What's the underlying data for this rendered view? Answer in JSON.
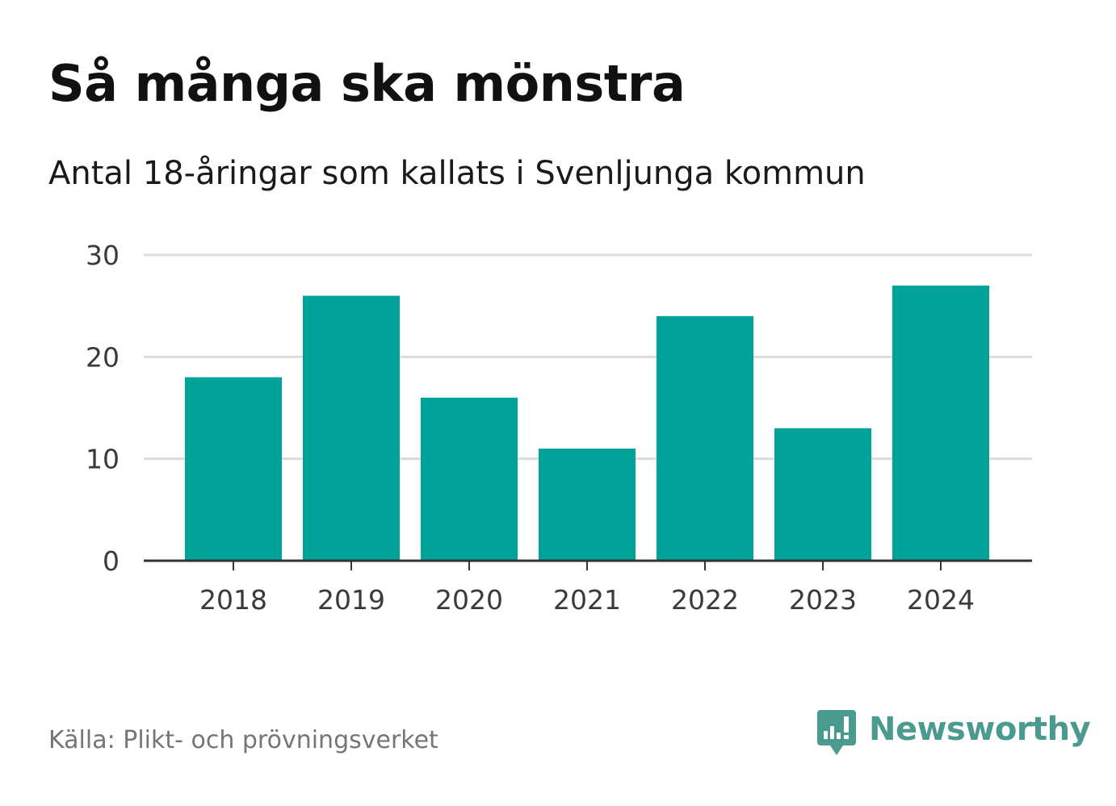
{
  "header": {
    "title": "Så många ska mönstra",
    "subtitle": "Antal 18-åringar som kallats i Svenljunga kommun"
  },
  "footer": {
    "source": "Källa: Plikt- och prövningsverket",
    "brand": "Newsworthy"
  },
  "colors": {
    "bar": "#00a39a",
    "grid": "#dcdcdc",
    "axis": "#333333",
    "brand": "#4b9a8f"
  },
  "chart_data": {
    "type": "bar",
    "title": "Så många ska mönstra",
    "subtitle": "Antal 18-åringar som kallats i Svenljunga kommun",
    "categories": [
      "2018",
      "2019",
      "2020",
      "2021",
      "2022",
      "2023",
      "2024"
    ],
    "values": [
      18,
      26,
      16,
      11,
      24,
      13,
      27
    ],
    "xlabel": "",
    "ylabel": "",
    "ylim": [
      0,
      30
    ],
    "yticks": [
      0,
      10,
      20,
      30
    ],
    "grid": true,
    "legend": "none"
  }
}
